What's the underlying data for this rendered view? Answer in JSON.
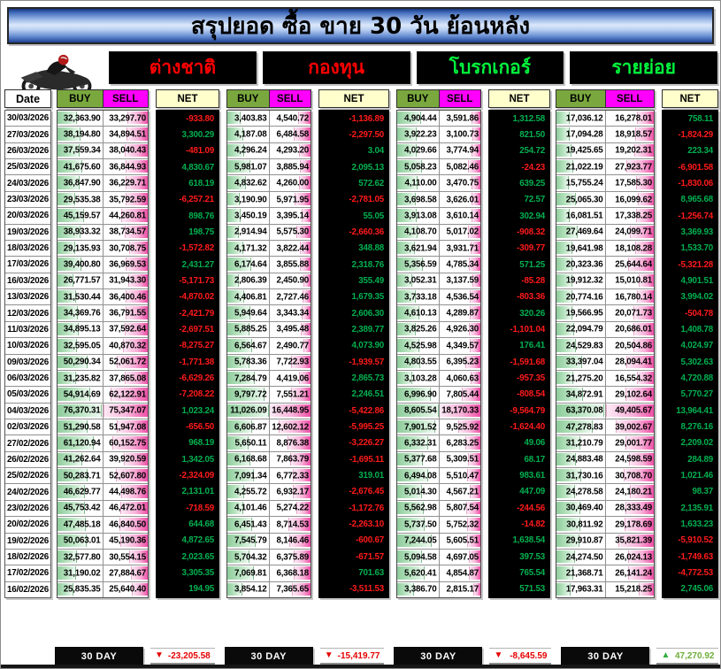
{
  "title": "สรุปยอด ซื้อ ขาย 30 วัน ย้อนหลัง",
  "date_header": "Date",
  "col_headers": {
    "buy": "BUY",
    "sell": "SELL",
    "net": "NET"
  },
  "groups": [
    {
      "name": "ต่างชาติ",
      "color": "#ff0000"
    },
    {
      "name": "กองทุน",
      "color": "#ff0000"
    },
    {
      "name": "โบรกเกอร์",
      "color": "#00f53c"
    },
    {
      "name": "รายย่อย",
      "color": "#00f53c"
    }
  ],
  "icons": {
    "motorcycle": "motorcycle-icon",
    "arrow_down": "▼",
    "arrow_up": "▲"
  },
  "colors": {
    "buy_header_bg": "#7aa83e",
    "sell_header_bg": "#ff00ff",
    "net_header_bg": "#ffffcc",
    "net_positive": "#00b050",
    "net_negative": "#ff1a1a",
    "footer_negative": "#e60000",
    "footer_positive": "#6fae3a"
  },
  "rows": [
    {
      "date": "30/03/2026",
      "foreign": [
        "32,363.90",
        "33,297.70",
        "-933.80"
      ],
      "fund": [
        "3,403.83",
        "4,540.72",
        "-1,136.89"
      ],
      "broker": [
        "4,904.44",
        "3,591.86",
        "1,312.58"
      ],
      "retail": [
        "17,036.12",
        "16,278.01",
        "758.11"
      ]
    },
    {
      "date": "27/03/2026",
      "foreign": [
        "38,194.80",
        "34,894.51",
        "3,300.29"
      ],
      "fund": [
        "4,187.08",
        "6,484.58",
        "-2,297.50"
      ],
      "broker": [
        "3,922.23",
        "3,100.73",
        "821.50"
      ],
      "retail": [
        "17,094.28",
        "18,918.57",
        "-1,824.29"
      ]
    },
    {
      "date": "26/03/2026",
      "foreign": [
        "37,559.34",
        "38,040.43",
        "-481.09"
      ],
      "fund": [
        "4,296.24",
        "4,293.20",
        "3.04"
      ],
      "broker": [
        "4,029.66",
        "3,774.94",
        "254.72"
      ],
      "retail": [
        "19,425.65",
        "19,202.31",
        "223.34"
      ]
    },
    {
      "date": "25/03/2026",
      "foreign": [
        "41,675.60",
        "36,844.93",
        "4,830.67"
      ],
      "fund": [
        "5,981.07",
        "3,885.94",
        "2,095.13"
      ],
      "broker": [
        "5,058.23",
        "5,082.46",
        "-24.23"
      ],
      "retail": [
        "21,022.19",
        "27,923.77",
        "-6,901.58"
      ]
    },
    {
      "date": "24/03/2026",
      "foreign": [
        "36,847.90",
        "36,229.71",
        "618.19"
      ],
      "fund": [
        "4,832.62",
        "4,260.00",
        "572.62"
      ],
      "broker": [
        "4,110.00",
        "3,470.75",
        "639.25"
      ],
      "retail": [
        "15,755.24",
        "17,585.30",
        "-1,830.06"
      ]
    },
    {
      "date": "23/03/2026",
      "foreign": [
        "29,535.38",
        "35,792.59",
        "-6,257.21"
      ],
      "fund": [
        "3,190.90",
        "5,971.95",
        "-2,781.05"
      ],
      "broker": [
        "3,698.58",
        "3,626.01",
        "72.57"
      ],
      "retail": [
        "25,065.30",
        "16,099.62",
        "8,965.68"
      ]
    },
    {
      "date": "20/03/2026",
      "foreign": [
        "45,159.57",
        "44,260.81",
        "898.76"
      ],
      "fund": [
        "3,450.19",
        "3,395.14",
        "55.05"
      ],
      "broker": [
        "3,913.08",
        "3,610.14",
        "302.94"
      ],
      "retail": [
        "16,081.51",
        "17,338.25",
        "-1,256.74"
      ]
    },
    {
      "date": "19/03/2026",
      "foreign": [
        "38,933.32",
        "38,734.57",
        "198.75"
      ],
      "fund": [
        "2,914.94",
        "5,575.30",
        "-2,660.36"
      ],
      "broker": [
        "4,108.70",
        "5,017.02",
        "-908.32"
      ],
      "retail": [
        "27,469.64",
        "24,099.71",
        "3,369.93"
      ]
    },
    {
      "date": "18/03/2026",
      "foreign": [
        "29,135.93",
        "30,708.75",
        "-1,572.82"
      ],
      "fund": [
        "4,171.32",
        "3,822.44",
        "348.88"
      ],
      "broker": [
        "3,621.94",
        "3,931.71",
        "-309.77"
      ],
      "retail": [
        "19,641.98",
        "18,108.28",
        "1,533.70"
      ]
    },
    {
      "date": "17/03/2026",
      "foreign": [
        "39,400.80",
        "36,969.53",
        "2,431.27"
      ],
      "fund": [
        "6,174.64",
        "3,855.88",
        "2,318.76"
      ],
      "broker": [
        "5,356.59",
        "4,785.34",
        "571.25"
      ],
      "retail": [
        "20,323.36",
        "25,644.64",
        "-5,321.28"
      ]
    },
    {
      "date": "16/03/2026",
      "foreign": [
        "26,771.57",
        "31,943.30",
        "-5,171.73"
      ],
      "fund": [
        "2,806.39",
        "2,450.90",
        "355.49"
      ],
      "broker": [
        "3,052.31",
        "3,137.59",
        "-85.28"
      ],
      "retail": [
        "19,912.32",
        "15,010.81",
        "4,901.51"
      ]
    },
    {
      "date": "13/03/2026",
      "foreign": [
        "31,530.44",
        "36,400.46",
        "-4,870.02"
      ],
      "fund": [
        "4,406.81",
        "2,727.46",
        "1,679.35"
      ],
      "broker": [
        "3,733.18",
        "4,536.54",
        "-803.36"
      ],
      "retail": [
        "20,774.16",
        "16,780.14",
        "3,994.02"
      ]
    },
    {
      "date": "12/03/2026",
      "foreign": [
        "34,369.76",
        "36,791.55",
        "-2,421.79"
      ],
      "fund": [
        "5,949.64",
        "3,343.34",
        "2,606.30"
      ],
      "broker": [
        "4,610.13",
        "4,289.87",
        "320.26"
      ],
      "retail": [
        "19,566.95",
        "20,071.73",
        "-504.78"
      ]
    },
    {
      "date": "11/03/2026",
      "foreign": [
        "34,895.13",
        "37,592.64",
        "-2,697.51"
      ],
      "fund": [
        "5,885.25",
        "3,495.48",
        "2,389.77"
      ],
      "broker": [
        "3,825.26",
        "4,926.30",
        "-1,101.04"
      ],
      "retail": [
        "22,094.79",
        "20,686.01",
        "1,408.78"
      ]
    },
    {
      "date": "10/03/2026",
      "foreign": [
        "32,595.05",
        "40,870.32",
        "-8,275.27"
      ],
      "fund": [
        "6,564.67",
        "2,490.77",
        "4,073.90"
      ],
      "broker": [
        "4,525.98",
        "4,349.57",
        "176.41"
      ],
      "retail": [
        "24,529.83",
        "20,504.86",
        "4,024.97"
      ]
    },
    {
      "date": "09/03/2026",
      "foreign": [
        "50,290.34",
        "52,061.72",
        "-1,771.38"
      ],
      "fund": [
        "5,783.36",
        "7,722.93",
        "-1,939.57"
      ],
      "broker": [
        "4,803.55",
        "6,395.23",
        "-1,591.68"
      ],
      "retail": [
        "33,397.04",
        "28,094.41",
        "5,302.63"
      ]
    },
    {
      "date": "06/03/2026",
      "foreign": [
        "31,235.82",
        "37,865.08",
        "-6,629.26"
      ],
      "fund": [
        "7,284.79",
        "4,419.06",
        "2,865.73"
      ],
      "broker": [
        "3,103.28",
        "4,060.63",
        "-957.35"
      ],
      "retail": [
        "21,275.20",
        "16,554.32",
        "4,720.88"
      ]
    },
    {
      "date": "05/03/2026",
      "foreign": [
        "54,914.69",
        "62,122.91",
        "-7,208.22"
      ],
      "fund": [
        "9,797.72",
        "7,551.21",
        "2,246.51"
      ],
      "broker": [
        "6,996.90",
        "7,805.44",
        "-808.54"
      ],
      "retail": [
        "34,872.91",
        "29,102.64",
        "5,770.27"
      ]
    },
    {
      "date": "04/03/2026",
      "foreign": [
        "76,370.31",
        "75,347.07",
        "1,023.24"
      ],
      "fund": [
        "11,026.09",
        "16,448.95",
        "-5,422.86"
      ],
      "broker": [
        "8,605.54",
        "18,170.33",
        "-9,564.79"
      ],
      "retail": [
        "63,370.08",
        "49,405.67",
        "13,964.41"
      ]
    },
    {
      "date": "02/03/2026",
      "foreign": [
        "51,290.58",
        "51,947.08",
        "-656.50"
      ],
      "fund": [
        "6,606.87",
        "12,602.12",
        "-5,995.25"
      ],
      "broker": [
        "7,901.52",
        "9,525.92",
        "-1,624.40"
      ],
      "retail": [
        "47,278.83",
        "39,002.67",
        "8,276.16"
      ]
    },
    {
      "date": "27/02/2026",
      "foreign": [
        "61,120.94",
        "60,152.75",
        "968.19"
      ],
      "fund": [
        "5,650.11",
        "8,876.38",
        "-3,226.27"
      ],
      "broker": [
        "6,332.31",
        "6,283.25",
        "49.06"
      ],
      "retail": [
        "31,210.79",
        "29,001.77",
        "2,209.02"
      ]
    },
    {
      "date": "26/02/2026",
      "foreign": [
        "41,262.64",
        "39,920.59",
        "1,342.05"
      ],
      "fund": [
        "6,168.68",
        "7,863.79",
        "-1,695.11"
      ],
      "broker": [
        "5,377.68",
        "5,309.51",
        "68.17"
      ],
      "retail": [
        "24,883.48",
        "24,598.59",
        "284.89"
      ]
    },
    {
      "date": "25/02/2026",
      "foreign": [
        "50,283.71",
        "52,607.80",
        "-2,324.09"
      ],
      "fund": [
        "7,091.34",
        "6,772.33",
        "319.01"
      ],
      "broker": [
        "6,494.08",
        "5,510.47",
        "983.61"
      ],
      "retail": [
        "31,730.16",
        "30,708.70",
        "1,021.46"
      ]
    },
    {
      "date": "24/02/2026",
      "foreign": [
        "46,629.77",
        "44,498.76",
        "2,131.01"
      ],
      "fund": [
        "4,255.72",
        "6,932.17",
        "-2,676.45"
      ],
      "broker": [
        "5,014.30",
        "4,567.21",
        "447.09"
      ],
      "retail": [
        "24,278.58",
        "24,180.21",
        "98.37"
      ]
    },
    {
      "date": "23/02/2026",
      "foreign": [
        "45,753.42",
        "46,472.01",
        "-718.59"
      ],
      "fund": [
        "4,101.46",
        "5,274.22",
        "-1,172.76"
      ],
      "broker": [
        "5,562.98",
        "5,807.54",
        "-244.56"
      ],
      "retail": [
        "30,469.40",
        "28,333.49",
        "2,135.91"
      ]
    },
    {
      "date": "20/02/2026",
      "foreign": [
        "47,485.18",
        "46,840.50",
        "644.68"
      ],
      "fund": [
        "6,451.43",
        "8,714.53",
        "-2,263.10"
      ],
      "broker": [
        "5,737.50",
        "5,752.32",
        "-14.82"
      ],
      "retail": [
        "30,811.92",
        "29,178.69",
        "1,633.23"
      ]
    },
    {
      "date": "19/02/2026",
      "foreign": [
        "50,063.01",
        "45,190.36",
        "4,872.65"
      ],
      "fund": [
        "7,545.79",
        "8,146.46",
        "-600.67"
      ],
      "broker": [
        "7,244.05",
        "5,605.51",
        "1,638.54"
      ],
      "retail": [
        "29,910.87",
        "35,821.39",
        "-5,910.52"
      ]
    },
    {
      "date": "18/02/2026",
      "foreign": [
        "32,577.80",
        "30,554.15",
        "2,023.65"
      ],
      "fund": [
        "5,704.32",
        "6,375.89",
        "-671.57"
      ],
      "broker": [
        "5,094.58",
        "4,697.05",
        "397.53"
      ],
      "retail": [
        "24,274.50",
        "26,024.13",
        "-1,749.63"
      ]
    },
    {
      "date": "17/02/2026",
      "foreign": [
        "31,190.02",
        "27,884.67",
        "3,305.35"
      ],
      "fund": [
        "7,069.81",
        "6,368.18",
        "701.63"
      ],
      "broker": [
        "5,620.41",
        "4,854.87",
        "765.54"
      ],
      "retail": [
        "21,368.71",
        "26,141.24",
        "-4,772.53"
      ]
    },
    {
      "date": "16/02/2026",
      "foreign": [
        "25,835.35",
        "25,640.40",
        "194.95"
      ],
      "fund": [
        "3,854.12",
        "7,365.65",
        "-3,511.53"
      ],
      "broker": [
        "3,386.70",
        "2,815.17",
        "571.53"
      ],
      "retail": [
        "17,963.31",
        "15,218.25",
        "2,745.06"
      ]
    }
  ],
  "footer": {
    "items": [
      {
        "label": "30 DAY",
        "value": "-23,205.58",
        "direction": "down"
      },
      {
        "label": "30 DAY",
        "value": "-15,419.77",
        "direction": "down"
      },
      {
        "label": "30 DAY",
        "value": "-8,645.59",
        "direction": "down"
      },
      {
        "label": "30 DAY",
        "value": "47,270.92",
        "direction": "up"
      }
    ]
  }
}
